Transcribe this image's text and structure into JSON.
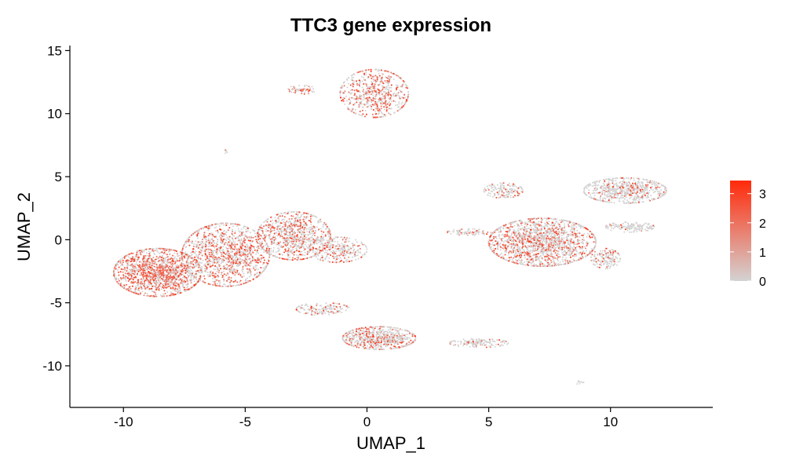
{
  "chart_data": {
    "type": "scatter",
    "title": "TTC3 gene expression",
    "xlabel": "UMAP_1",
    "ylabel": "UMAP_2",
    "xlim": [
      -12.2,
      14.2
    ],
    "ylim": [
      -13.3,
      15.4
    ],
    "x_ticks": [
      -10,
      -5,
      0,
      5,
      10
    ],
    "y_ticks": [
      15,
      10,
      5,
      0,
      -5,
      -10
    ],
    "grid": false,
    "legend": {
      "position": "right",
      "type": "colorbar",
      "range": [
        0,
        3.45
      ],
      "ticks": [
        0,
        1,
        2,
        3
      ],
      "low_color": "#d3d3d3",
      "high_color": "#ff2a0a"
    },
    "clusters": [
      {
        "cx": 0.3,
        "cy": 11.6,
        "rx": 1.4,
        "ry": 1.9,
        "n": 650,
        "expr": 0.45
      },
      {
        "cx": -2.7,
        "cy": 11.9,
        "rx": 0.6,
        "ry": 0.35,
        "n": 60,
        "expr": 0.4
      },
      {
        "cx": -5.8,
        "cy": 7.0,
        "rx": 0.15,
        "ry": 0.15,
        "n": 8,
        "expr": 0.1
      },
      {
        "cx": -8.6,
        "cy": -2.6,
        "rx": 1.8,
        "ry": 1.9,
        "n": 1500,
        "expr": 0.55
      },
      {
        "cx": -5.8,
        "cy": -1.2,
        "rx": 1.8,
        "ry": 2.5,
        "n": 1300,
        "expr": 0.45
      },
      {
        "cx": -3.0,
        "cy": 0.3,
        "rx": 1.5,
        "ry": 1.9,
        "n": 900,
        "expr": 0.4
      },
      {
        "cx": -1.2,
        "cy": -0.8,
        "rx": 1.2,
        "ry": 1.0,
        "n": 300,
        "expr": 0.25
      },
      {
        "cx": 0.5,
        "cy": -7.8,
        "rx": 1.5,
        "ry": 0.9,
        "n": 700,
        "expr": 0.35
      },
      {
        "cx": -1.8,
        "cy": -5.5,
        "rx": 1.1,
        "ry": 0.5,
        "n": 150,
        "expr": 0.3
      },
      {
        "cx": 4.6,
        "cy": -8.2,
        "rx": 1.2,
        "ry": 0.35,
        "n": 150,
        "expr": 0.2
      },
      {
        "cx": 7.2,
        "cy": -0.2,
        "rx": 2.2,
        "ry": 1.9,
        "n": 1700,
        "expr": 0.35
      },
      {
        "cx": 10.6,
        "cy": 3.9,
        "rx": 1.7,
        "ry": 1.0,
        "n": 700,
        "expr": 0.15
      },
      {
        "cx": 5.6,
        "cy": 3.9,
        "rx": 0.8,
        "ry": 0.6,
        "n": 150,
        "expr": 0.2
      },
      {
        "cx": 9.8,
        "cy": -1.5,
        "rx": 0.6,
        "ry": 0.8,
        "n": 150,
        "expr": 0.2
      },
      {
        "cx": 4.2,
        "cy": 0.6,
        "rx": 0.9,
        "ry": 0.25,
        "n": 80,
        "expr": 0.25
      },
      {
        "cx": 10.8,
        "cy": 1.0,
        "rx": 1.0,
        "ry": 0.4,
        "n": 150,
        "expr": 0.1
      },
      {
        "cx": 8.7,
        "cy": -11.3,
        "rx": 0.2,
        "ry": 0.15,
        "n": 8,
        "expr": 0.1
      }
    ]
  }
}
